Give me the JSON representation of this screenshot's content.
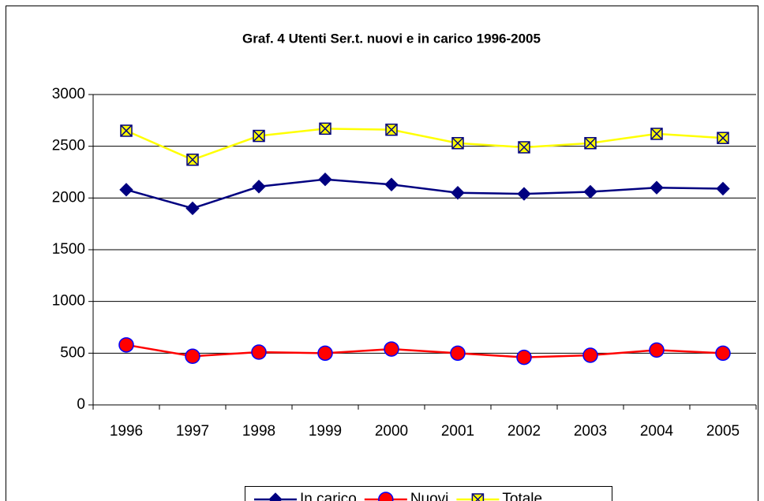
{
  "chart_data": {
    "type": "line",
    "title": "Graf. 4 Utenti Ser.t. nuovi e in carico 1996-2005",
    "categories": [
      "1996",
      "1997",
      "1998",
      "1999",
      "2000",
      "2001",
      "2002",
      "2003",
      "2004",
      "2005"
    ],
    "series": [
      {
        "name": "In carico",
        "color": "#000080",
        "marker": "diamond",
        "values": [
          2080,
          1900,
          2110,
          2180,
          2130,
          2050,
          2040,
          2060,
          2100,
          2090
        ]
      },
      {
        "name": "Nuovi",
        "color": "#ff0000",
        "marker": "circle",
        "values": [
          580,
          470,
          510,
          500,
          540,
          500,
          460,
          480,
          530,
          500
        ]
      },
      {
        "name": "Totale",
        "color": "#ffff00",
        "marker": "square-x",
        "values": [
          2650,
          2370,
          2600,
          2670,
          2660,
          2530,
          2490,
          2530,
          2620,
          2580
        ]
      }
    ],
    "ylim": [
      0,
      3000
    ],
    "yticks": [
      0,
      500,
      1000,
      1500,
      2000,
      2500,
      3000
    ],
    "grid": true,
    "legend": "bottom"
  }
}
